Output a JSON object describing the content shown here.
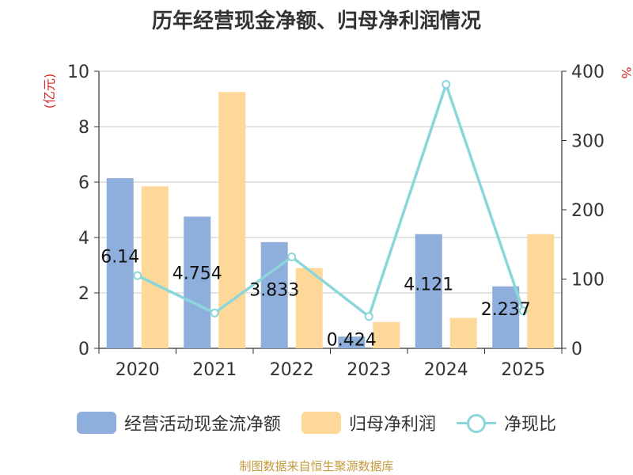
{
  "chart_data": {
    "type": "bar",
    "title": "历年经营现金净额、归母净利润情况",
    "categories": [
      "2020",
      "2021",
      "2022",
      "2023",
      "2024",
      "2025"
    ],
    "series": [
      {
        "name": "经营活动现金流净额",
        "type": "bar",
        "axis": "left",
        "color": "#8eaedb",
        "values": [
          6.14,
          4.754,
          3.833,
          0.424,
          4.121,
          2.237
        ],
        "labels": [
          "6.14",
          "4.754",
          "3.833",
          "0.424",
          "4.121",
          "2.237"
        ]
      },
      {
        "name": "归母净利润",
        "type": "bar",
        "axis": "left",
        "color": "#fdd899",
        "values": [
          5.85,
          9.25,
          2.9,
          0.95,
          1.1,
          4.12
        ]
      },
      {
        "name": "净现比",
        "type": "line",
        "axis": "right",
        "color": "#8ad6da",
        "values": [
          105,
          51,
          132,
          46,
          381,
          54
        ]
      }
    ],
    "ylabel_left": "(亿元)",
    "ylabel_right": "%",
    "ylim_left": [
      0,
      10
    ],
    "ylim_right": [
      0,
      400
    ],
    "yticks_left": [
      "0",
      "2",
      "4",
      "6",
      "8",
      "10"
    ],
    "yticks_right": [
      "0",
      "100",
      "200",
      "300",
      "400"
    ],
    "grid": true,
    "legend_position": "bottom",
    "source": "制图数据来自恒生聚源数据库"
  }
}
